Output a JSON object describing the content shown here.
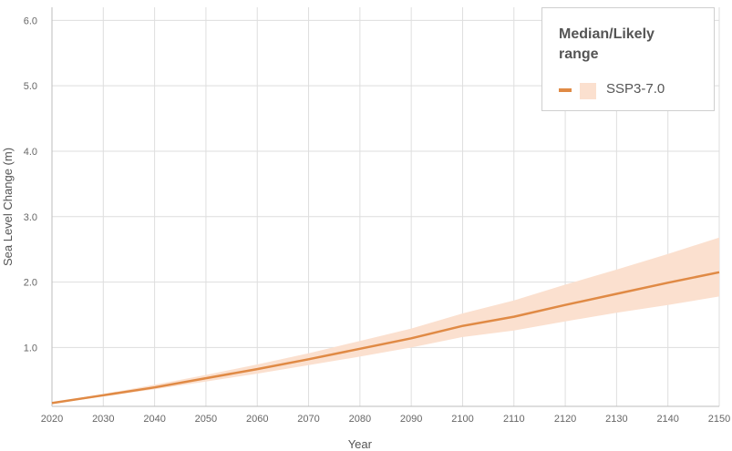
{
  "chart_data": {
    "type": "line",
    "title": "",
    "xlabel": "Year",
    "ylabel": "Sea Level Change (m)",
    "xlim": [
      2020,
      2150
    ],
    "ylim": [
      0.1,
      6.2
    ],
    "x_ticks": [
      2020,
      2030,
      2040,
      2050,
      2060,
      2070,
      2080,
      2090,
      2100,
      2110,
      2120,
      2130,
      2140,
      2150
    ],
    "y_ticks": [
      1.0,
      2.0,
      3.0,
      4.0,
      5.0,
      6.0
    ],
    "y_tick_labels": [
      "1.0",
      "2.0",
      "3.0",
      "4.0",
      "5.0",
      "6.0"
    ],
    "grid": true,
    "legend": {
      "title": "Median/Likely range",
      "position": "top-right"
    },
    "series": [
      {
        "name": "SSP3-7.0",
        "color": "#e08a45",
        "band_color": "#fbe0cf",
        "x": [
          2020,
          2030,
          2040,
          2050,
          2060,
          2070,
          2080,
          2090,
          2100,
          2110,
          2120,
          2130,
          2140,
          2150
        ],
        "median": [
          0.15,
          0.27,
          0.39,
          0.53,
          0.67,
          0.82,
          0.98,
          1.14,
          1.33,
          1.47,
          1.65,
          1.82,
          1.99,
          2.15
        ],
        "low": [
          0.14,
          0.25,
          0.36,
          0.48,
          0.6,
          0.73,
          0.86,
          1.0,
          1.16,
          1.26,
          1.4,
          1.53,
          1.65,
          1.78
        ],
        "high": [
          0.16,
          0.29,
          0.43,
          0.58,
          0.74,
          0.91,
          1.1,
          1.29,
          1.52,
          1.72,
          1.96,
          2.19,
          2.43,
          2.68
        ]
      }
    ]
  }
}
